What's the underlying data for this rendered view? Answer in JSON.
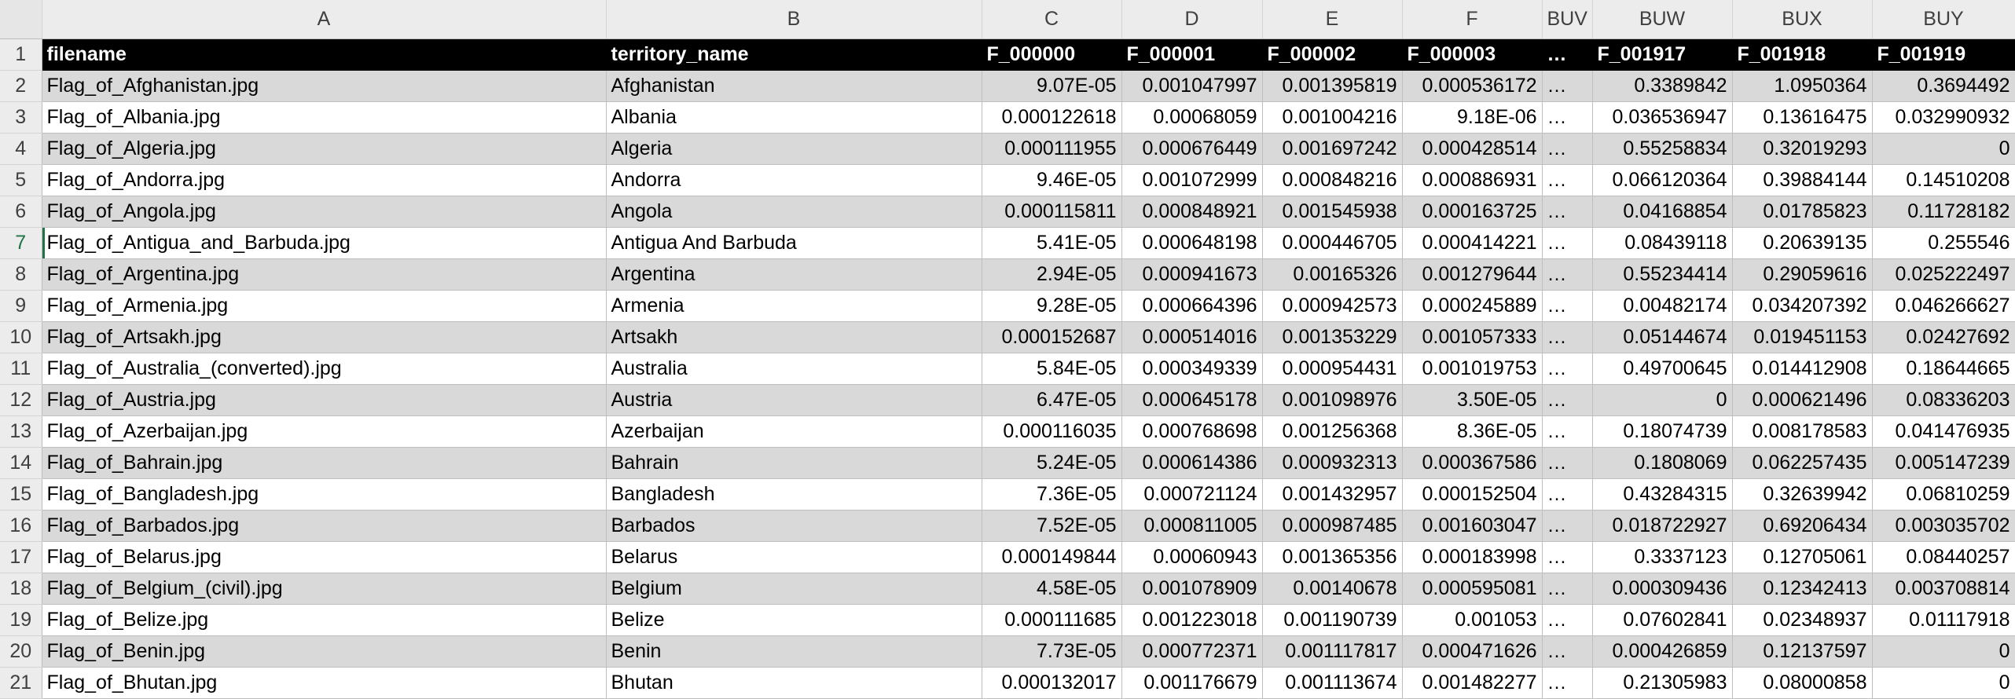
{
  "column_headers": [
    "A",
    "B",
    "C",
    "D",
    "E",
    "F",
    "BUV",
    "BUW",
    "BUX",
    "BUY"
  ],
  "header_row": {
    "num": "1",
    "cells": [
      "filename",
      "territory_name",
      "F_000000",
      "F_000001",
      "F_000002",
      "F_000003",
      "…",
      "F_001917",
      "F_001918",
      "F_001919"
    ]
  },
  "rows": [
    {
      "num": "2",
      "cells": [
        "Flag_of_Afghanistan.jpg",
        "Afghanistan",
        "9.07E-05",
        "0.001047997",
        "0.001395819",
        "0.000536172",
        "…",
        "0.3389842",
        "1.0950364",
        "0.3694492"
      ]
    },
    {
      "num": "3",
      "cells": [
        "Flag_of_Albania.jpg",
        "Albania",
        "0.000122618",
        "0.00068059",
        "0.001004216",
        "9.18E-06",
        "…",
        "0.036536947",
        "0.13616475",
        "0.032990932"
      ]
    },
    {
      "num": "4",
      "cells": [
        "Flag_of_Algeria.jpg",
        "Algeria",
        "0.000111955",
        "0.000676449",
        "0.001697242",
        "0.000428514",
        "…",
        "0.55258834",
        "0.32019293",
        "0"
      ]
    },
    {
      "num": "5",
      "cells": [
        "Flag_of_Andorra.jpg",
        "Andorra",
        "9.46E-05",
        "0.001072999",
        "0.000848216",
        "0.000886931",
        "…",
        "0.066120364",
        "0.39884144",
        "0.14510208"
      ]
    },
    {
      "num": "6",
      "cells": [
        "Flag_of_Angola.jpg",
        "Angola",
        "0.000115811",
        "0.000848921",
        "0.001545938",
        "0.000163725",
        "…",
        "0.04168854",
        "0.01785823",
        "0.11728182"
      ]
    },
    {
      "num": "7",
      "cells": [
        "Flag_of_Antigua_and_Barbuda.jpg",
        "Antigua And Barbuda",
        "5.41E-05",
        "0.000648198",
        "0.000446705",
        "0.000414221",
        "…",
        "0.08439118",
        "0.20639135",
        "0.255546"
      ]
    },
    {
      "num": "8",
      "cells": [
        "Flag_of_Argentina.jpg",
        "Argentina",
        "2.94E-05",
        "0.000941673",
        "0.00165326",
        "0.001279644",
        "…",
        "0.55234414",
        "0.29059616",
        "0.025222497"
      ]
    },
    {
      "num": "9",
      "cells": [
        "Flag_of_Armenia.jpg",
        "Armenia",
        "9.28E-05",
        "0.000664396",
        "0.000942573",
        "0.000245889",
        "…",
        "0.00482174",
        "0.034207392",
        "0.046266627"
      ]
    },
    {
      "num": "10",
      "cells": [
        "Flag_of_Artsakh.jpg",
        "Artsakh",
        "0.000152687",
        "0.000514016",
        "0.001353229",
        "0.001057333",
        "…",
        "0.05144674",
        "0.019451153",
        "0.02427692"
      ]
    },
    {
      "num": "11",
      "cells": [
        "Flag_of_Australia_(converted).jpg",
        "Australia",
        "5.84E-05",
        "0.000349339",
        "0.000954431",
        "0.001019753",
        "…",
        "0.49700645",
        "0.014412908",
        "0.18644665"
      ]
    },
    {
      "num": "12",
      "cells": [
        "Flag_of_Austria.jpg",
        "Austria",
        "6.47E-05",
        "0.000645178",
        "0.001098976",
        "3.50E-05",
        "…",
        "0",
        "0.000621496",
        "0.08336203"
      ]
    },
    {
      "num": "13",
      "cells": [
        "Flag_of_Azerbaijan.jpg",
        "Azerbaijan",
        "0.000116035",
        "0.000768698",
        "0.001256368",
        "8.36E-05",
        "…",
        "0.18074739",
        "0.008178583",
        "0.041476935"
      ]
    },
    {
      "num": "14",
      "cells": [
        "Flag_of_Bahrain.jpg",
        "Bahrain",
        "5.24E-05",
        "0.000614386",
        "0.000932313",
        "0.000367586",
        "…",
        "0.1808069",
        "0.062257435",
        "0.005147239"
      ]
    },
    {
      "num": "15",
      "cells": [
        "Flag_of_Bangladesh.jpg",
        "Bangladesh",
        "7.36E-05",
        "0.000721124",
        "0.001432957",
        "0.000152504",
        "…",
        "0.43284315",
        "0.32639942",
        "0.06810259"
      ]
    },
    {
      "num": "16",
      "cells": [
        "Flag_of_Barbados.jpg",
        "Barbados",
        "7.52E-05",
        "0.000811005",
        "0.000987485",
        "0.001603047",
        "…",
        "0.018722927",
        "0.69206434",
        "0.003035702"
      ]
    },
    {
      "num": "17",
      "cells": [
        "Flag_of_Belarus.jpg",
        "Belarus",
        "0.000149844",
        "0.00060943",
        "0.001365356",
        "0.000183998",
        "…",
        "0.3337123",
        "0.12705061",
        "0.08440257"
      ]
    },
    {
      "num": "18",
      "cells": [
        "Flag_of_Belgium_(civil).jpg",
        "Belgium",
        "4.58E-05",
        "0.001078909",
        "0.00140678",
        "0.000595081",
        "…",
        "0.000309436",
        "0.12342413",
        "0.003708814"
      ]
    },
    {
      "num": "19",
      "cells": [
        "Flag_of_Belize.jpg",
        "Belize",
        "0.000111685",
        "0.001223018",
        "0.001190739",
        "0.001053",
        "…",
        "0.07602841",
        "0.02348937",
        "0.01117918"
      ]
    },
    {
      "num": "20",
      "cells": [
        "Flag_of_Benin.jpg",
        "Benin",
        "7.73E-05",
        "0.000772371",
        "0.001117817",
        "0.000471626",
        "…",
        "0.000426859",
        "0.12137597",
        "0"
      ]
    },
    {
      "num": "21",
      "cells": [
        "Flag_of_Bhutan.jpg",
        "Bhutan",
        "0.000132017",
        "0.001176679",
        "0.001113674",
        "0.001482277",
        "…",
        "0.21305983",
        "0.08000858",
        "0"
      ]
    }
  ],
  "active_row": "7",
  "colors": {
    "header_row_bg": "#000000",
    "header_row_text": "#ffffff",
    "band_shade": "#d9d9d9",
    "selection_accent": "#217346"
  }
}
